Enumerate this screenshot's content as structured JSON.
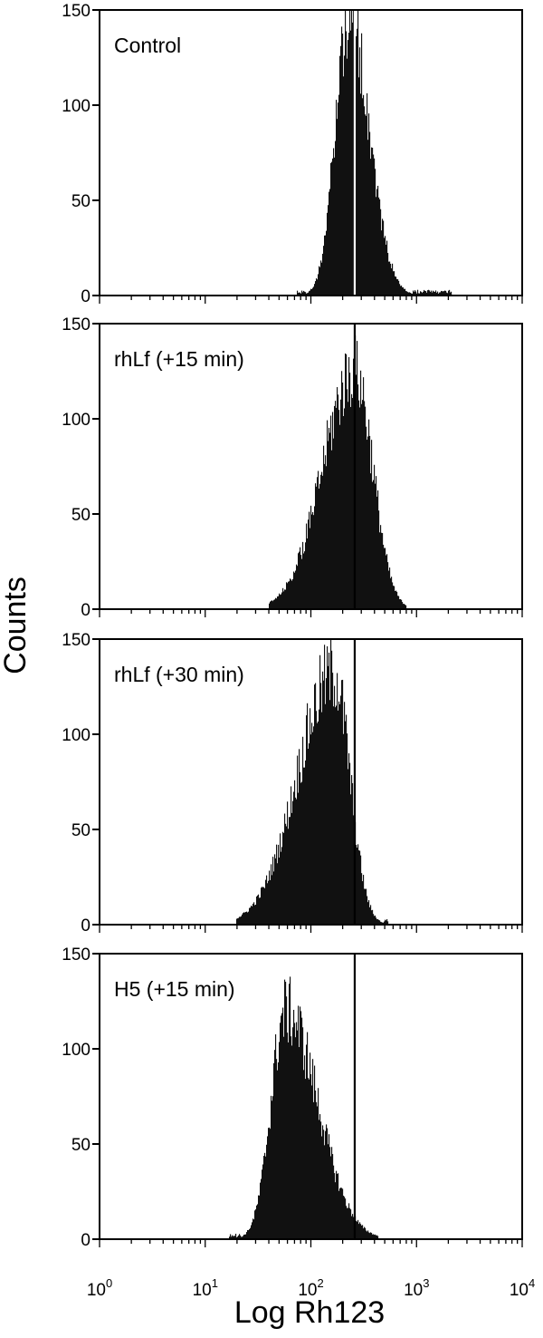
{
  "colors": {
    "bars": "#111111",
    "frame": "#000000",
    "background": "#ffffff"
  },
  "chart_data": {
    "type": "histogram",
    "xlabel": "Log Rh123",
    "ylabel": "Counts",
    "x_scale": "log",
    "xlim": [
      1,
      10000
    ],
    "x_ticks": [
      {
        "base": "10",
        "exp": "0"
      },
      {
        "base": "10",
        "exp": "1"
      },
      {
        "base": "10",
        "exp": "2"
      },
      {
        "base": "10",
        "exp": "3"
      },
      {
        "base": "10",
        "exp": "4"
      }
    ],
    "ylim": [
      0,
      150
    ],
    "y_ticks": [
      "0",
      "50",
      "100",
      "150"
    ],
    "marker_line_x": 260,
    "panels": [
      {
        "label": "Control",
        "marker_style": "white",
        "distribution": {
          "peak_x": 230,
          "peak_count": 148,
          "sigma_left": 0.13,
          "sigma_right": 0.19,
          "x_min": 75,
          "x_max": 2100
        }
      },
      {
        "label": "rhLf (+15 min)",
        "marker_style": "black",
        "distribution": {
          "peak_x": 260,
          "peak_count": 125,
          "sigma_left": 0.3,
          "sigma_right": 0.17,
          "x_min": 40,
          "x_max": 780
        }
      },
      {
        "label": "rhLf (+30 min)",
        "marker_style": "black",
        "distribution": {
          "peak_x": 165,
          "peak_count": 132,
          "sigma_left": 0.34,
          "sigma_right": 0.15,
          "x_min": 20,
          "x_max": 520
        }
      },
      {
        "label": "H5 (+15 min)",
        "marker_style": "black",
        "distribution": {
          "peak_x": 58,
          "peak_count": 120,
          "sigma_left": 0.14,
          "sigma_right": 0.3,
          "x_min": 17,
          "x_max": 420
        }
      }
    ]
  }
}
